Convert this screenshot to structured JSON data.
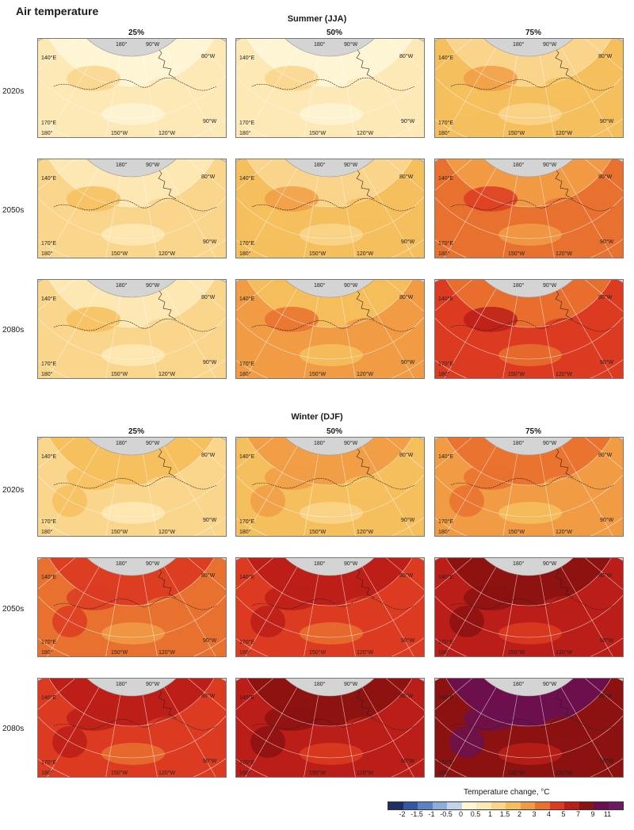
{
  "figure": {
    "title": "Air temperature"
  },
  "sections": [
    {
      "title": "Summer (JJA)",
      "columns": [
        "25%",
        "50%",
        "75%"
      ],
      "rows": [
        "2020s",
        "2050s",
        "2080s"
      ],
      "levels": [
        [
          1,
          1,
          3
        ],
        [
          2,
          3,
          5
        ],
        [
          2,
          4,
          6
        ]
      ]
    },
    {
      "title": "Winter (DJF)",
      "columns": [
        "25%",
        "50%",
        "75%"
      ],
      "rows": [
        "2020s",
        "2050s",
        "2080s"
      ],
      "levels": [
        [
          2,
          3,
          4
        ],
        [
          5,
          6,
          7
        ],
        [
          6,
          7,
          8
        ]
      ]
    }
  ],
  "map_labels": {
    "top": [
      "180°",
      "90°W",
      "80°W"
    ],
    "left": [
      "140°E",
      "170°E",
      "180°"
    ],
    "bottom": [
      "150°W",
      "120°W",
      "90°W"
    ]
  },
  "legend": {
    "title": "Temperature change, °C",
    "ticks": [
      "-2",
      "-1.5",
      "-1",
      "-0.5",
      "0",
      "0.5",
      "1",
      "1.5",
      "2",
      "3",
      "4",
      "5",
      "7",
      "9",
      "11"
    ],
    "colors": [
      "#1f2f63",
      "#3556a2",
      "#5d82c4",
      "#8eadd8",
      "#c3d3ea",
      "#fdf5d6",
      "#fde9b6",
      "#fad58c",
      "#f6bf5d",
      "#f19c45",
      "#e9712f",
      "#dc3b21",
      "#bb1e18",
      "#8b1210",
      "#6a1050",
      "#6d1a62"
    ]
  }
}
